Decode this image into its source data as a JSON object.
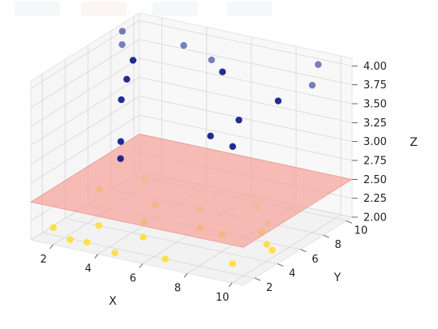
{
  "toolbar": {
    "button_colors": [
      "#eef0f4",
      "#f7ecee",
      "#edf0f7",
      "#eef1f6"
    ]
  },
  "chart_data": {
    "type": "scatter",
    "title": "",
    "xlabel": "X",
    "ylabel": "Y",
    "zlabel": "Z",
    "xlim": [
      1,
      10.5
    ],
    "ylim": [
      1,
      10.5
    ],
    "zlim": [
      2,
      4.1
    ],
    "grid": true,
    "x_ticks": [
      2,
      4,
      6,
      8,
      10
    ],
    "y_ticks": [
      2,
      4,
      6,
      8,
      10
    ],
    "z_ticks": [
      2.0,
      2.25,
      2.5,
      2.75,
      3.0,
      3.25,
      3.5,
      3.75,
      4.0
    ],
    "x_tick_labels": [
      "2",
      "4",
      "6",
      "8",
      "10"
    ],
    "y_tick_labels": [
      "2",
      "4",
      "6",
      "8",
      "10"
    ],
    "z_tick_labels": [
      "2.00",
      "2.25",
      "2.50",
      "2.75",
      "3.00",
      "3.25",
      "3.50",
      "3.75",
      "4.00"
    ],
    "plane": {
      "z": 2.5,
      "color": "#f4a49a"
    },
    "series": [
      {
        "color": "#ffe033",
        "points": [
          [
            1.5,
            2,
            2.1
          ],
          [
            2.5,
            4,
            2.0
          ],
          [
            3.5,
            7,
            2.05
          ],
          [
            1,
            7,
            2.1
          ],
          [
            3,
            2,
            2.0
          ],
          [
            4,
            5,
            2.05
          ],
          [
            5,
            8,
            2.0
          ],
          [
            2,
            9,
            2.1
          ],
          [
            5,
            3,
            2.1
          ],
          [
            6,
            6,
            2.0
          ],
          [
            7,
            9,
            2.05
          ],
          [
            6.5,
            2,
            2.0
          ],
          [
            7.5,
            5,
            2.1
          ],
          [
            8,
            8,
            2.0
          ],
          [
            9,
            3,
            2.0
          ],
          [
            8.5,
            6.5,
            2.05
          ],
          [
            9.5,
            5,
            2.1
          ],
          [
            2.5,
            1.5,
            2.05
          ],
          [
            4.5,
            1.5,
            2.0
          ],
          [
            10,
            4.5,
            2.1
          ]
        ]
      },
      {
        "color": "#0d1a8f",
        "points": [
          [
            1,
            9,
            4.0
          ],
          [
            1.5,
            8,
            3.95
          ],
          [
            2.5,
            7,
            3.9
          ],
          [
            4,
            8.5,
            4.05
          ],
          [
            3.5,
            4.5,
            3.95
          ],
          [
            3,
            5,
            3.6
          ],
          [
            4,
            3,
            3.3
          ],
          [
            4.5,
            2,
            3.2
          ],
          [
            5.5,
            8,
            4.0
          ],
          [
            6.5,
            7,
            4.0
          ],
          [
            7.5,
            4,
            3.5
          ],
          [
            8,
            5.5,
            3.6
          ],
          [
            9,
            3,
            3.55
          ],
          [
            9.5,
            6,
            3.9
          ],
          [
            9.5,
            9.5,
            4.05
          ],
          [
            10,
            8,
            3.95
          ]
        ]
      }
    ]
  }
}
